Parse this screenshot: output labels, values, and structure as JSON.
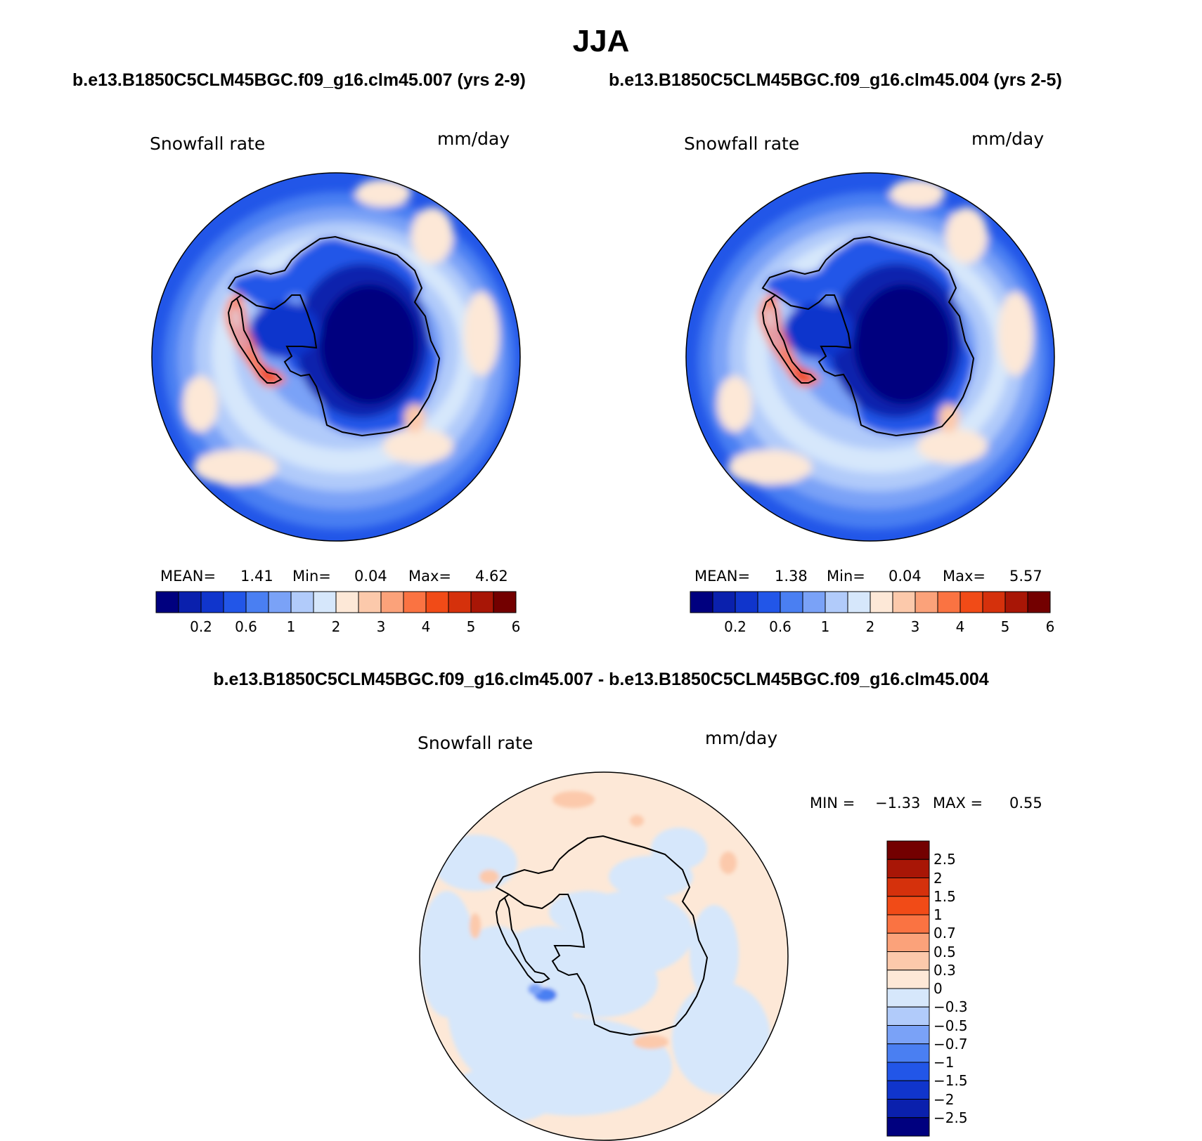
{
  "header": {
    "title": "JJA",
    "left_case": "b.e13.B1850C5CLM45BGC.f09_g16.clm45.007 (yrs 2-9)",
    "right_case": "b.e13.B1850C5CLM45BGC.f09_g16.clm45.004 (yrs 2-5)",
    "diff_title": "b.e13.B1850C5CLM45BGC.f09_g16.clm45.007 - b.e13.B1850C5CLM45BGC.f09_g16.clm45.004"
  },
  "colors": {
    "seq_palette": [
      "#00007f",
      "#0a20ad",
      "#1035cc",
      "#2256e8",
      "#4a7ff2",
      "#7aa2f7",
      "#b1cbfa",
      "#d6e7fb",
      "#fde8d7",
      "#fcc9ab",
      "#fba27a",
      "#fa7342",
      "#f14b17",
      "#d5310c",
      "#a81606",
      "#730000"
    ],
    "div_palette": [
      "#00007f",
      "#0a20ad",
      "#1035cc",
      "#2256e8",
      "#4a7ff2",
      "#7aa2f7",
      "#b1cbfa",
      "#d6e7fb",
      "#fde8d7",
      "#fcc9ab",
      "#fba27a",
      "#fa7342",
      "#f14b17",
      "#d5310c",
      "#a81606",
      "#730000"
    ]
  },
  "chart_data": [
    {
      "type": "heatmap",
      "title": "Snowfall rate",
      "units": "mm/day",
      "case": "b.e13.B1850C5CLM45BGC.f09_g16.clm45.007 (yrs 2-9)",
      "projection": "south-polar-stereographic",
      "stats": {
        "mean_label": "MEAN=",
        "mean": "1.41",
        "min_label": "Min=",
        "min": "0.04",
        "max_label": "Max=",
        "max": "4.62"
      },
      "colorbar_levels": [
        0.1,
        0.2,
        0.4,
        0.6,
        0.8,
        1,
        1.5,
        2,
        2.5,
        3,
        3.5,
        4,
        4.5,
        5,
        5.5,
        6
      ],
      "colorbar_tick_labels": [
        "0.2",
        "0.6",
        "1",
        "2",
        "3",
        "4",
        "5",
        "6"
      ]
    },
    {
      "type": "heatmap",
      "title": "Snowfall rate",
      "units": "mm/day",
      "case": "b.e13.B1850C5CLM45BGC.f09_g16.clm45.004 (yrs 2-5)",
      "projection": "south-polar-stereographic",
      "stats": {
        "mean_label": "MEAN=",
        "mean": "1.38",
        "min_label": "Min=",
        "min": "0.04",
        "max_label": "Max=",
        "max": "5.57"
      },
      "colorbar_levels": [
        0.1,
        0.2,
        0.4,
        0.6,
        0.8,
        1,
        1.5,
        2,
        2.5,
        3,
        3.5,
        4,
        4.5,
        5,
        5.5,
        6
      ],
      "colorbar_tick_labels": [
        "0.2",
        "0.6",
        "1",
        "2",
        "3",
        "4",
        "5",
        "6"
      ]
    },
    {
      "type": "heatmap",
      "title": "Snowfall rate",
      "units": "mm/day",
      "case": "b.e13.B1850C5CLM45BGC.f09_g16.clm45.007 - b.e13.B1850C5CLM45BGC.f09_g16.clm45.004",
      "projection": "south-polar-stereographic",
      "stats": {
        "min_label": "MIN =",
        "min": "−1.33",
        "max_label": "MAX =",
        "max": "0.55"
      },
      "colorbar_tick_labels": [
        "2.5",
        "2",
        "1.5",
        "1",
        "0.7",
        "0.5",
        "0.3",
        "0",
        "−0.3",
        "−0.5",
        "−0.7",
        "−1",
        "−1.5",
        "−2",
        "−2.5"
      ]
    }
  ]
}
